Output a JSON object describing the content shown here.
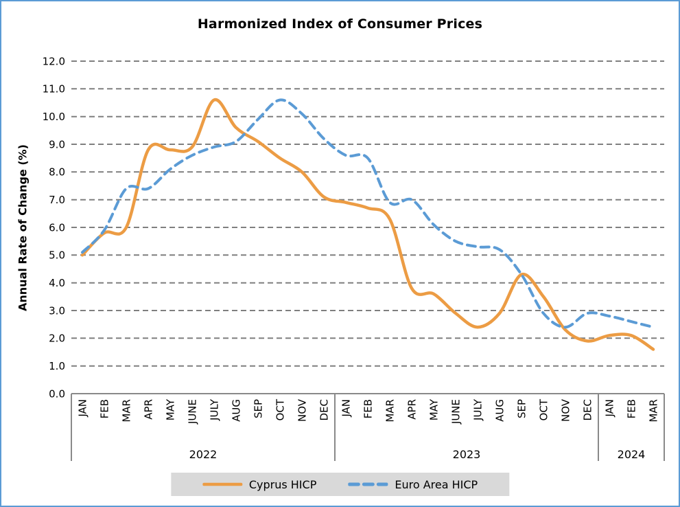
{
  "colors": {
    "frame_border": "#5B9BD5",
    "legend_background": "#D9D9D9",
    "gridline": "#7F7F7F",
    "axis": "#898989",
    "text": "#000000"
  },
  "chart_data": {
    "type": "line",
    "title": "Harmonized Index of Consumer Prices",
    "ylabel": "Annual Rate of Change (%)",
    "xlabel": "",
    "ylim": [
      0,
      12
    ],
    "y_tick_step": 1,
    "y_tick_labels": [
      "0.0",
      "1.0",
      "2.0",
      "3.0",
      "4.0",
      "5.0",
      "6.0",
      "7.0",
      "8.0",
      "9.0",
      "10.0",
      "11.0",
      "12.0"
    ],
    "grid": "horizontal-dashed",
    "legend_position": "bottom",
    "smooth_lines": true,
    "categories": [
      "JAN",
      "FEB",
      "MAR",
      "APR",
      "MAY",
      "JUNE",
      "JULY",
      "AUG",
      "SEP",
      "OCT",
      "NOV",
      "DEC",
      "JAN",
      "FEB",
      "MAR",
      "APR",
      "MAY",
      "JUNE",
      "JULY",
      "AUG",
      "SEP",
      "OCT",
      "NOV",
      "DEC",
      "JAN",
      "FEB",
      "MAR"
    ],
    "year_groups": [
      {
        "label": "2022",
        "count": 12
      },
      {
        "label": "2023",
        "count": 12
      },
      {
        "label": "2024",
        "count": 3
      }
    ],
    "series": [
      {
        "name": "Cyprus HICP",
        "color": "#EC9C44",
        "line_style": "solid",
        "values": [
          5.0,
          5.8,
          6.0,
          8.8,
          8.8,
          8.9,
          10.6,
          9.6,
          9.1,
          8.5,
          8.0,
          7.1,
          6.9,
          6.7,
          6.3,
          3.8,
          3.6,
          2.9,
          2.4,
          2.9,
          4.3,
          3.5,
          2.3,
          1.9,
          2.1,
          2.1,
          1.6
        ]
      },
      {
        "name": "Euro Area HICP",
        "color": "#5B9BD5",
        "line_style": "dashed",
        "values": [
          5.1,
          5.9,
          7.4,
          7.4,
          8.1,
          8.6,
          8.9,
          9.1,
          9.9,
          10.6,
          10.1,
          9.2,
          8.6,
          8.5,
          6.9,
          7.0,
          6.1,
          5.5,
          5.3,
          5.2,
          4.3,
          2.9,
          2.4,
          2.9,
          2.8,
          2.6,
          2.4
        ]
      }
    ]
  }
}
